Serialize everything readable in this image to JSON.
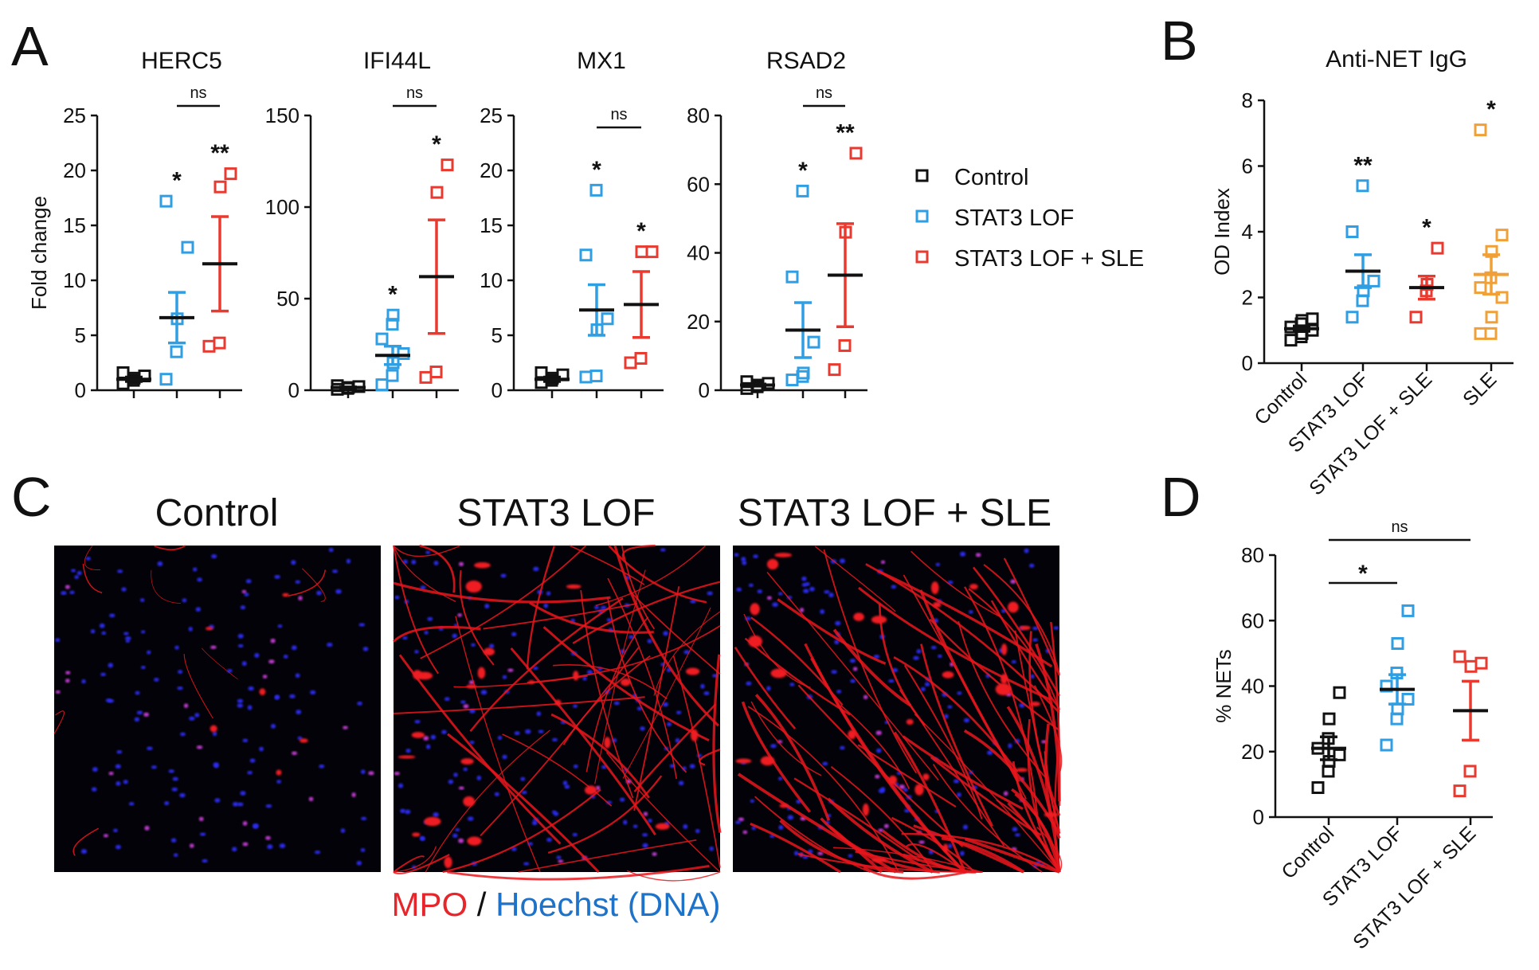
{
  "panels": {
    "A": "A",
    "B": "B",
    "C": "C",
    "D": "D"
  },
  "colors": {
    "control": "#111111",
    "stat3": "#2f9ee3",
    "sle_combo": "#ea3a30",
    "sle": "#f0a037"
  },
  "legend": [
    {
      "label": "Control",
      "group": "control"
    },
    {
      "label": "STAT3 LOF",
      "group": "stat3"
    },
    {
      "label": "STAT3 LOF + SLE",
      "group": "sle_combo"
    }
  ],
  "chart_data": [
    {
      "panel": "A",
      "type": "scatter",
      "title": "HERC5",
      "ylabel": "Fold change",
      "ylim": [
        0,
        25
      ],
      "yticks": [
        0,
        5,
        10,
        15,
        20,
        25
      ],
      "groups": [
        {
          "name": "Control",
          "color_key": "control",
          "values": [
            0.6,
            0.9,
            1.1,
            1.3,
            1.6
          ],
          "mean": 1.0,
          "sem": 0.2
        },
        {
          "name": "STAT3 LOF",
          "color_key": "stat3",
          "values": [
            1.0,
            3.5,
            6.5,
            13.0,
            17.2
          ],
          "mean": 6.6,
          "sem": 2.3
        },
        {
          "name": "STAT3 LOF + SLE",
          "color_key": "sle_combo",
          "values": [
            4.0,
            4.3,
            18.5,
            19.7
          ],
          "mean": 11.5,
          "sem": 4.3
        }
      ],
      "significance": [
        {
          "group": 1,
          "text": "*"
        },
        {
          "group": 2,
          "text": "**"
        }
      ],
      "brackets": [
        {
          "from": 1,
          "to": 2,
          "text": "ns"
        }
      ]
    },
    {
      "panel": "A",
      "type": "scatter",
      "title": "IFI44L",
      "ylabel": "",
      "ylim": [
        0,
        150
      ],
      "yticks": [
        0,
        50,
        100,
        150
      ],
      "groups": [
        {
          "name": "Control",
          "color_key": "control",
          "values": [
            0.5,
            1.0,
            1.5,
            2.0,
            2.5
          ],
          "mean": 1.5,
          "sem": 0.3
        },
        {
          "name": "STAT3 LOF",
          "color_key": "stat3",
          "values": [
            3,
            8,
            15,
            20,
            28,
            36,
            41
          ],
          "mean": 19,
          "sem": 5
        },
        {
          "name": "STAT3 LOF + SLE",
          "color_key": "sle_combo",
          "values": [
            7,
            10,
            108,
            123
          ],
          "mean": 62,
          "sem": 31
        }
      ],
      "significance": [
        {
          "group": 1,
          "text": "*"
        },
        {
          "group": 2,
          "text": "*"
        }
      ],
      "brackets": [
        {
          "from": 1,
          "to": 2,
          "text": "ns"
        }
      ]
    },
    {
      "panel": "A",
      "type": "scatter",
      "title": "MX1",
      "ylabel": "",
      "ylim": [
        0,
        25
      ],
      "yticks": [
        0,
        5,
        10,
        15,
        20,
        25
      ],
      "groups": [
        {
          "name": "Control",
          "color_key": "control",
          "values": [
            0.7,
            0.9,
            1.1,
            1.4,
            1.6
          ],
          "mean": 1.0,
          "sem": 0.2
        },
        {
          "name": "STAT3 LOF",
          "color_key": "stat3",
          "values": [
            1.2,
            1.3,
            5.5,
            6.5,
            12.3,
            18.2
          ],
          "mean": 7.3,
          "sem": 2.3
        },
        {
          "name": "STAT3 LOF + SLE",
          "color_key": "sle_combo",
          "values": [
            2.5,
            2.9,
            12.6,
            12.6
          ],
          "mean": 7.8,
          "sem": 3.0
        }
      ],
      "significance": [
        {
          "group": 1,
          "text": "*"
        },
        {
          "group": 2,
          "text": "*"
        }
      ],
      "brackets": [
        {
          "from": 1,
          "to": 2,
          "text": "ns"
        }
      ]
    },
    {
      "panel": "A",
      "type": "scatter",
      "title": "RSAD2",
      "ylabel": "",
      "ylim": [
        0,
        80
      ],
      "yticks": [
        0,
        20,
        40,
        60,
        80
      ],
      "groups": [
        {
          "name": "Control",
          "color_key": "control",
          "values": [
            0.5,
            1.0,
            1.5,
            2.0,
            2.5
          ],
          "mean": 1.5,
          "sem": 0.3
        },
        {
          "name": "STAT3 LOF",
          "color_key": "stat3",
          "values": [
            3,
            4,
            5,
            14,
            33,
            58
          ],
          "mean": 17.5,
          "sem": 8
        },
        {
          "name": "STAT3 LOF + SLE",
          "color_key": "sle_combo",
          "values": [
            6,
            13,
            46,
            69
          ],
          "mean": 33.5,
          "sem": 15
        }
      ],
      "significance": [
        {
          "group": 1,
          "text": "*"
        },
        {
          "group": 2,
          "text": "**"
        }
      ],
      "brackets": [
        {
          "from": 1,
          "to": 2,
          "text": "ns"
        }
      ]
    },
    {
      "panel": "B",
      "type": "scatter",
      "title": "Anti-NET IgG",
      "ylabel": "OD Index",
      "ylim": [
        0,
        8
      ],
      "yticks": [
        0,
        2,
        4,
        6,
        8
      ],
      "groups": [
        {
          "name": "Control",
          "color_key": "control",
          "values": [
            0.7,
            0.8,
            0.9,
            1.0,
            1.1,
            1.2,
            1.3,
            1.35
          ],
          "mean": 1.05,
          "sem": 0.08
        },
        {
          "name": "STAT3 LOF",
          "color_key": "stat3",
          "values": [
            1.4,
            1.9,
            2.2,
            2.5,
            4.0,
            5.4
          ],
          "mean": 2.8,
          "sem": 0.5
        },
        {
          "name": "STAT3 LOF + SLE",
          "color_key": "sle_combo",
          "values": [
            1.4,
            2.2,
            2.4,
            3.5
          ],
          "mean": 2.3,
          "sem": 0.35
        },
        {
          "name": "SLE",
          "color_key": "sle",
          "values": [
            0.9,
            0.9,
            1.4,
            2.0,
            2.3,
            2.6,
            3.4,
            3.9,
            7.1
          ],
          "mean": 2.7,
          "sem": 0.6
        }
      ],
      "significance": [
        {
          "group": 1,
          "text": "**"
        },
        {
          "group": 2,
          "text": "*"
        },
        {
          "group": 3,
          "text": "*"
        }
      ],
      "brackets": []
    },
    {
      "panel": "D",
      "type": "scatter",
      "title": "",
      "ylabel": "% NETs",
      "ylim": [
        0,
        80
      ],
      "yticks": [
        0,
        20,
        40,
        60,
        80
      ],
      "groups": [
        {
          "name": "Control",
          "color_key": "control",
          "values": [
            9,
            14,
            17,
            19,
            21,
            24,
            30,
            38
          ],
          "mean": 21,
          "sem": 3.5
        },
        {
          "name": "STAT3 LOF",
          "color_key": "stat3",
          "values": [
            22,
            30,
            33,
            36,
            40,
            44,
            53,
            63
          ],
          "mean": 39,
          "sem": 4.5
        },
        {
          "name": "STAT3 LOF + SLE",
          "color_key": "sle_combo",
          "values": [
            8,
            14,
            46,
            47,
            49
          ],
          "mean": 32.5,
          "sem": 9
        }
      ],
      "significance": [],
      "brackets": [
        {
          "from": 0,
          "to": 1,
          "text": "*"
        },
        {
          "from": 0,
          "to": 2,
          "text": "ns"
        }
      ]
    }
  ],
  "microscopy": {
    "titles": [
      "Control",
      "STAT3 LOF",
      "STAT3 LOF + SLE"
    ],
    "caption_mpo": "MPO",
    "caption_sep": " / ",
    "caption_dna": "Hoechst (DNA)"
  }
}
